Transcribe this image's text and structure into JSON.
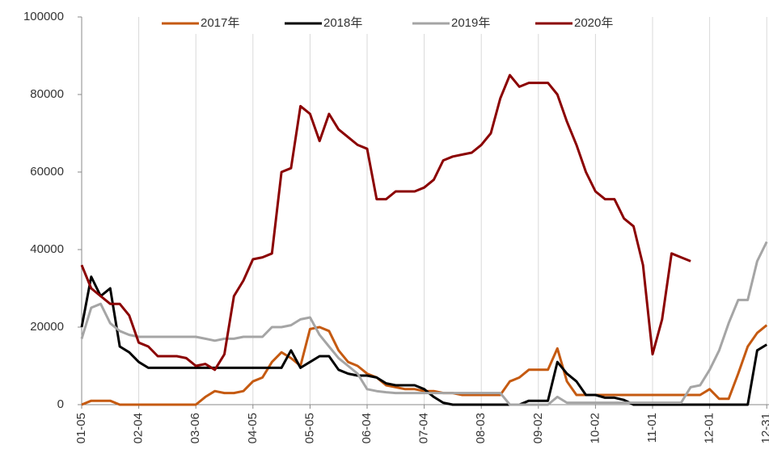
{
  "chart_data": {
    "type": "line",
    "categories": [
      "01-05",
      null,
      null,
      null,
      null,
      null,
      "02-04",
      null,
      null,
      null,
      null,
      null,
      "03-06",
      null,
      null,
      null,
      null,
      null,
      "04-05",
      null,
      null,
      null,
      null,
      null,
      "05-05",
      null,
      null,
      null,
      null,
      null,
      "06-04",
      null,
      null,
      null,
      null,
      null,
      "07-04",
      null,
      null,
      null,
      null,
      null,
      "08-03",
      null,
      null,
      null,
      null,
      null,
      "09-02",
      null,
      null,
      null,
      null,
      null,
      "10-02",
      null,
      null,
      null,
      null,
      null,
      "11-01",
      null,
      null,
      null,
      null,
      null,
      "12-01",
      null,
      null,
      null,
      null,
      null,
      "12-31"
    ],
    "series": [
      {
        "name": "2017年",
        "color": "#c55a11",
        "values": [
          0,
          1000,
          1000,
          1000,
          0,
          0,
          0,
          0,
          0,
          0,
          0,
          0,
          0,
          2000,
          3500,
          3000,
          3000,
          3500,
          6000,
          7000,
          11000,
          13500,
          12000,
          10000,
          19500,
          20000,
          19000,
          14000,
          11000,
          10000,
          8000,
          7000,
          5000,
          4500,
          4000,
          4000,
          3500,
          3500,
          3000,
          3000,
          2500,
          2500,
          2500,
          2500,
          2500,
          6000,
          7000,
          9000,
          9000,
          9000,
          14500,
          6000,
          2500,
          2500,
          2500,
          2500,
          2500,
          2500,
          2500,
          2500,
          2500,
          2500,
          2500,
          2500,
          2500,
          2500,
          4000,
          1500,
          1500,
          8000,
          15000,
          18500,
          20500
        ]
      },
      {
        "name": "2018年",
        "color": "#000000",
        "values": [
          20000,
          33000,
          28000,
          30000,
          15000,
          13500,
          11000,
          9500,
          9500,
          9500,
          9500,
          9500,
          9500,
          9500,
          9500,
          9500,
          9500,
          9500,
          9500,
          9500,
          9500,
          9500,
          14000,
          9500,
          11000,
          12500,
          12500,
          9000,
          8000,
          7500,
          7500,
          7000,
          5500,
          5000,
          5000,
          5000,
          4000,
          2000,
          500,
          0,
          0,
          0,
          0,
          0,
          0,
          0,
          0,
          1000,
          1000,
          1000,
          11000,
          8000,
          6000,
          2500,
          2500,
          1800,
          1800,
          1200,
          0,
          0,
          0,
          0,
          0,
          0,
          0,
          0,
          0,
          0,
          0,
          0,
          0,
          14000,
          15500
        ]
      },
      {
        "name": "2019年",
        "color": "#a5a5a5",
        "values": [
          17000,
          25000,
          26000,
          21000,
          19000,
          18000,
          17500,
          17500,
          17500,
          17500,
          17500,
          17500,
          17500,
          17000,
          16500,
          17000,
          17000,
          17500,
          17500,
          17500,
          20000,
          20000,
          20500,
          22000,
          22500,
          18000,
          15000,
          12000,
          10000,
          8000,
          4000,
          3500,
          3200,
          3000,
          3000,
          3000,
          3000,
          3000,
          3000,
          3000,
          3000,
          3000,
          3000,
          3000,
          3000,
          0,
          0,
          0,
          0,
          0,
          2000,
          500,
          500,
          500,
          500,
          500,
          500,
          500,
          500,
          500,
          500,
          500,
          500,
          500,
          4500,
          5000,
          9000,
          14000,
          21000,
          27000,
          27000,
          37000,
          42000
        ]
      },
      {
        "name": "2020年",
        "color": "#8b0000",
        "values": [
          36000,
          30000,
          28000,
          26000,
          26000,
          23000,
          16000,
          15000,
          12500,
          12500,
          12500,
          12000,
          10000,
          10500,
          9000,
          13000,
          28000,
          32000,
          37500,
          38000,
          39000,
          60000,
          61000,
          77000,
          75000,
          68000,
          75000,
          71000,
          69000,
          67000,
          66000,
          53000,
          53000,
          55000,
          55000,
          55000,
          56000,
          58000,
          63000,
          64000,
          64500,
          65000,
          67000,
          70000,
          79000,
          85000,
          82000,
          83000,
          83000,
          83000,
          80000,
          73000,
          67000,
          60000,
          55000,
          53000,
          53000,
          48000,
          46000,
          36000,
          13000,
          22000,
          39000,
          38000,
          37000,
          null,
          null,
          null,
          null,
          null,
          null,
          null,
          null
        ]
      }
    ],
    "ylim": [
      0,
      100000
    ],
    "yticks": [
      0,
      20000,
      40000,
      60000,
      80000,
      100000
    ],
    "grid": true
  }
}
